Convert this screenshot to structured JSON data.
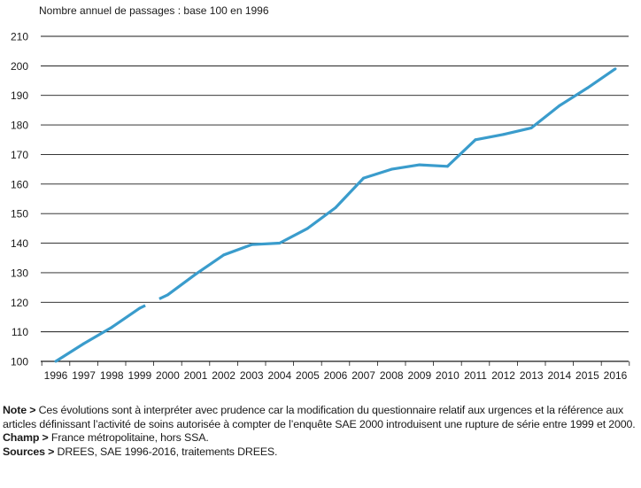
{
  "chart_data": {
    "type": "line",
    "ylabel": "Nombre annuel de passages : base 100 en 1996",
    "ylim": [
      100,
      210
    ],
    "yticks": [
      100,
      110,
      120,
      130,
      140,
      150,
      160,
      170,
      180,
      190,
      200,
      210
    ],
    "x": [
      "1996",
      "1997",
      "1998",
      "1999",
      "2000",
      "2001",
      "2002",
      "2003",
      "2004",
      "2005",
      "2006",
      "2007",
      "2008",
      "2009",
      "2010",
      "2011",
      "2012",
      "2013",
      "2014",
      "2015",
      "2016"
    ],
    "series": [
      {
        "values": [
          100,
          106,
          111.5,
          118,
          122.5,
          129.5,
          136,
          139.5,
          140,
          145,
          152,
          162,
          165,
          166.5,
          166,
          175,
          176.8,
          179,
          186.5,
          192.5,
          199
        ]
      }
    ],
    "break_between": [
      "1999",
      "2000"
    ],
    "grid": "horizontal",
    "line_color": "#3a9ccc"
  },
  "notes": {
    "note_label": "Note >",
    "note_text": " Ces évolutions sont à interpréter avec prudence car la modification du questionnaire relatif aux urgences et la référence aux articles définissant l’activité de soins autorisée à compter de l’enquête SAE 2000 introduisent une rupture de série entre 1999 et 2000.",
    "champ_label": "Champ >",
    "champ_text": " France métropolitaine, hors SSA.",
    "sources_label": "Sources >",
    "sources_text": " DREES, SAE 1996-2016, traitements DREES."
  }
}
